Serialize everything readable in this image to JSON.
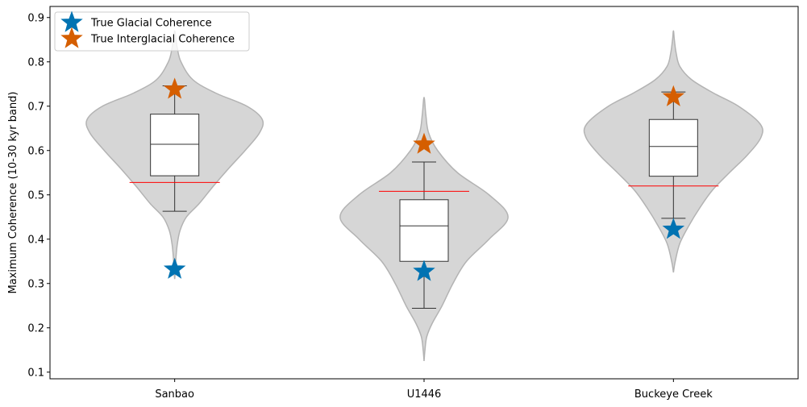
{
  "chart_data": {
    "type": "violin",
    "categories": [
      "Sanbao",
      "U1446",
      "Buckeye Creek"
    ],
    "ylabel": "Maximum Coherence (10-30 kyr band)",
    "ylim": [
      0.085,
      0.925
    ],
    "yticks": [
      0.1,
      0.2,
      0.3,
      0.4,
      0.5,
      0.6,
      0.7,
      0.8,
      0.9
    ],
    "ytick_labels": [
      "0.1",
      "0.2",
      "0.3",
      "0.4",
      "0.5",
      "0.6",
      "0.7",
      "0.8",
      "0.9"
    ],
    "legend": {
      "placement": "top-left",
      "entries": [
        {
          "label": "True Glacial Coherence",
          "color": "#0173b2",
          "marker": "star"
        },
        {
          "label": "True Interglacial Coherence",
          "color": "#d55e00",
          "marker": "star"
        }
      ]
    },
    "colors": {
      "violin_fill": "#d6d6d6",
      "violin_edge": "#b3b3b3",
      "box_edge": "#333333",
      "threshold_line": "#ff0000"
    },
    "violins": [
      {
        "category": "Sanbao",
        "min": 0.31,
        "max": 0.87,
        "profile": [
          [
            0.31,
            0.0
          ],
          [
            0.33,
            0.008
          ],
          [
            0.36,
            0.015
          ],
          [
            0.39,
            0.03
          ],
          [
            0.42,
            0.06
          ],
          [
            0.45,
            0.13
          ],
          [
            0.48,
            0.27
          ],
          [
            0.52,
            0.43
          ],
          [
            0.56,
            0.6
          ],
          [
            0.6,
            0.78
          ],
          [
            0.64,
            0.94
          ],
          [
            0.67,
            0.97
          ],
          [
            0.7,
            0.8
          ],
          [
            0.73,
            0.45
          ],
          [
            0.76,
            0.2
          ],
          [
            0.8,
            0.07
          ],
          [
            0.83,
            0.03
          ],
          [
            0.85,
            0.015
          ],
          [
            0.87,
            0.0
          ]
        ],
        "box": {
          "q1": 0.543,
          "median": 0.614,
          "q3": 0.682,
          "whisker_low": 0.463,
          "whisker_high": 0.746
        },
        "threshold": 0.528,
        "glacial": 0.332,
        "interglacial": 0.738
      },
      {
        "category": "U1446",
        "min": 0.125,
        "max": 0.72,
        "profile": [
          [
            0.125,
            0.0
          ],
          [
            0.15,
            0.01
          ],
          [
            0.18,
            0.03
          ],
          [
            0.21,
            0.09
          ],
          [
            0.25,
            0.2
          ],
          [
            0.3,
            0.32
          ],
          [
            0.35,
            0.47
          ],
          [
            0.4,
            0.72
          ],
          [
            0.45,
            0.93
          ],
          [
            0.5,
            0.72
          ],
          [
            0.55,
            0.37
          ],
          [
            0.6,
            0.15
          ],
          [
            0.64,
            0.05
          ],
          [
            0.68,
            0.02
          ],
          [
            0.72,
            0.0
          ]
        ],
        "box": {
          "q1": 0.35,
          "median": 0.43,
          "q3": 0.489,
          "whisker_low": 0.244,
          "whisker_high": 0.574
        },
        "threshold": 0.508,
        "glacial": 0.327,
        "interglacial": 0.614
      },
      {
        "category": "Buckeye Creek",
        "min": 0.325,
        "max": 0.87,
        "profile": [
          [
            0.325,
            0.0
          ],
          [
            0.35,
            0.02
          ],
          [
            0.39,
            0.07
          ],
          [
            0.43,
            0.17
          ],
          [
            0.47,
            0.29
          ],
          [
            0.51,
            0.43
          ],
          [
            0.55,
            0.62
          ],
          [
            0.59,
            0.82
          ],
          [
            0.63,
            0.97
          ],
          [
            0.66,
            0.96
          ],
          [
            0.7,
            0.72
          ],
          [
            0.73,
            0.44
          ],
          [
            0.76,
            0.2
          ],
          [
            0.79,
            0.07
          ],
          [
            0.82,
            0.03
          ],
          [
            0.85,
            0.01
          ],
          [
            0.87,
            0.0
          ]
        ],
        "box": {
          "q1": 0.542,
          "median": 0.609,
          "q3": 0.67,
          "whisker_low": 0.447,
          "whisker_high": 0.732
        },
        "threshold": 0.52,
        "glacial": 0.422,
        "interglacial": 0.721
      }
    ]
  }
}
